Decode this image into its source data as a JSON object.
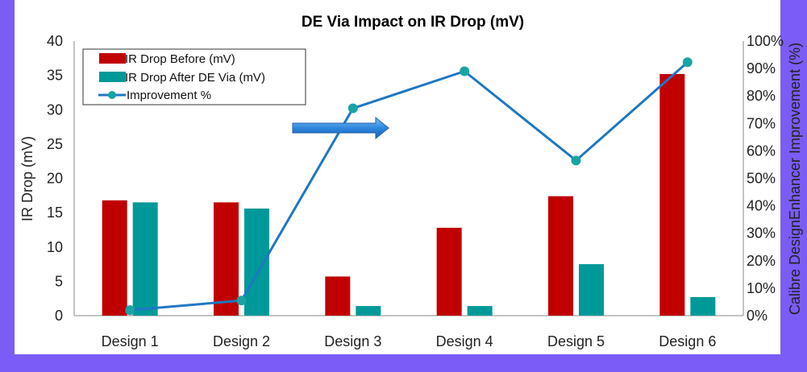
{
  "colors": {
    "before": "#c00000",
    "after": "#009999",
    "line": "#1f77c4",
    "marker": "#1aa3a3",
    "arrow": "#2e86de",
    "frame": "#7b5cf6"
  },
  "chart_data": {
    "type": "bar",
    "title": "DE Via Impact on IR Drop (mV)",
    "categories": [
      "Design 1",
      "Design 2",
      "Design 3",
      "Design 4",
      "Design 5",
      "Design 6"
    ],
    "series": [
      {
        "name": "IR Drop Before (mV)",
        "type": "bar",
        "axis": "left",
        "values": [
          16.8,
          16.5,
          5.7,
          12.8,
          17.4,
          35.2
        ]
      },
      {
        "name": "IR Drop After DE Via (mV)",
        "type": "bar",
        "axis": "left",
        "values": [
          16.5,
          15.6,
          1.4,
          1.4,
          7.5,
          2.7
        ]
      },
      {
        "name": "Improvement %",
        "type": "line",
        "axis": "right",
        "values": [
          2,
          5.5,
          75.5,
          89,
          56.5,
          92.3
        ]
      }
    ],
    "ylabel": "IR Drop (mV)",
    "ylabel_right": "Calibre DesignEnhancer Improvement (%)",
    "ylim": [
      0,
      40
    ],
    "y_ticks": [
      "0",
      "5",
      "10",
      "15",
      "20",
      "25",
      "30",
      "35",
      "40"
    ],
    "ylim_right": [
      0,
      100
    ],
    "y_right_ticks": [
      "0%",
      "10%",
      "20%",
      "30%",
      "40%",
      "50%",
      "60%",
      "70%",
      "80%",
      "90%",
      "100%"
    ],
    "legend_position": "top-left",
    "grid": false,
    "annotations": [
      "arrow"
    ]
  }
}
